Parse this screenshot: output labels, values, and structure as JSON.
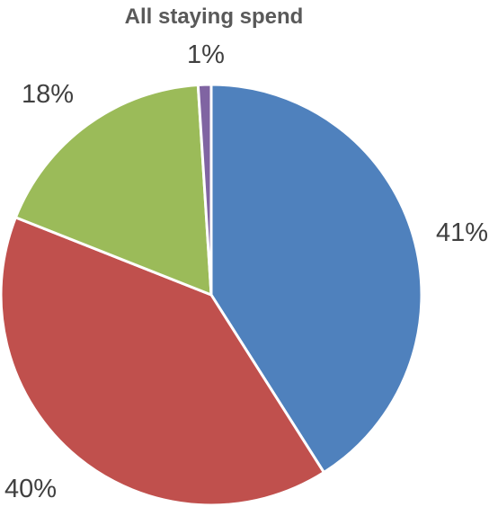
{
  "chart_data": {
    "type": "pie",
    "title": "All staying spend",
    "slices": [
      {
        "value": 41,
        "label": "41%",
        "color": "#4f81bd"
      },
      {
        "value": 40,
        "label": "40%",
        "color": "#c0504d"
      },
      {
        "value": 18,
        "label": "18%",
        "color": "#9bbb59"
      },
      {
        "value": 1,
        "label": "1%",
        "color": "#8064a2"
      }
    ],
    "legend": "none"
  }
}
